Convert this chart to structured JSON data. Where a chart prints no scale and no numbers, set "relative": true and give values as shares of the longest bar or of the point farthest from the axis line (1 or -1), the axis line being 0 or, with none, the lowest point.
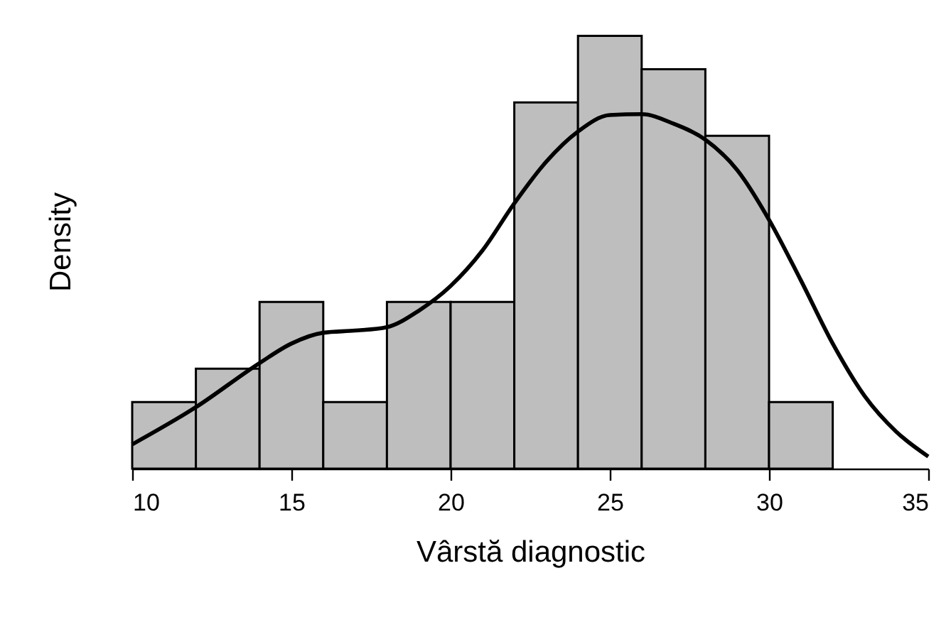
{
  "chart_data": {
    "type": "histogram",
    "xlabel": "Vârstă diagnostic",
    "ylabel": "Density",
    "relative": true,
    "xlim": [
      10,
      35
    ],
    "xticks": [
      10,
      15,
      20,
      25,
      30,
      35
    ],
    "grid": false,
    "bins": [
      10,
      12,
      14,
      16,
      18,
      20,
      22,
      24,
      26,
      28,
      30,
      32
    ],
    "values": [
      0.154,
      0.231,
      0.385,
      0.154,
      0.385,
      0.385,
      0.846,
      1,
      0.923,
      0.769,
      0.154
    ],
    "color": "#bebebe",
    "series": [
      {
        "type": "line",
        "color": "#000000",
        "x": [
          10,
          12,
          14,
          15,
          16,
          17,
          18,
          19,
          20,
          21,
          22,
          23,
          24,
          25,
          26,
          27,
          28,
          29,
          30,
          31,
          32,
          33,
          34,
          35
        ],
        "values": [
          0.056,
          0.142,
          0.244,
          0.289,
          0.314,
          0.319,
          0.327,
          0.365,
          0.422,
          0.504,
          0.613,
          0.709,
          0.779,
          0.817,
          0.819,
          0.797,
          0.76,
          0.69,
          0.575,
          0.435,
          0.289,
          0.168,
          0.085,
          0.028
        ]
      }
    ]
  }
}
